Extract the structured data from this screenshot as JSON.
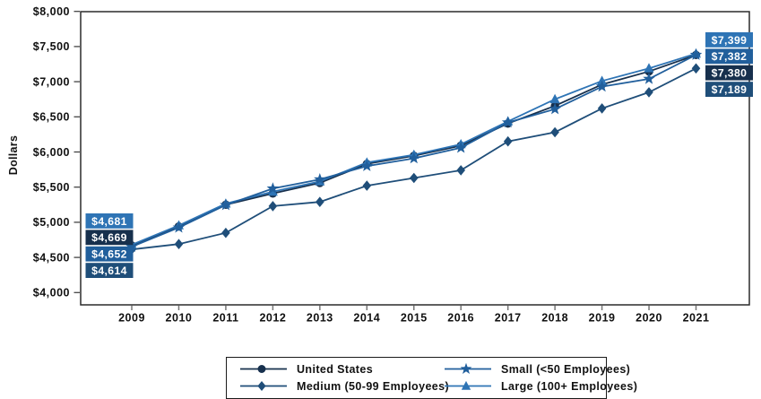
{
  "chart_data": {
    "type": "line",
    "title": "",
    "ylabel": "Dollars",
    "xlabel": "",
    "grid": false,
    "ylim": [
      4000,
      8000
    ],
    "y_tick_interval": 500,
    "y_ticks": [
      "$4,000",
      "$4,500",
      "$5,000",
      "$5,500",
      "$6,000",
      "$6,500",
      "$7,000",
      "$7,500",
      "$8,000"
    ],
    "years": [
      "2009",
      "2010",
      "2011",
      "2012",
      "2013",
      "2014",
      "2015",
      "2016",
      "2017",
      "2018",
      "2019",
      "2020",
      "2021"
    ],
    "series": [
      {
        "name": "United States",
        "marker": "circle",
        "color": "#17304d",
        "values": [
          4669,
          4940,
          5250,
          5410,
          5560,
          5830,
          5945,
          6090,
          6405,
          6655,
          6960,
          7145,
          7380
        ]
      },
      {
        "name": "Medium (50-99 Employees)",
        "marker": "diamond",
        "color": "#1f4e79",
        "values": [
          4614,
          4690,
          4850,
          5230,
          5290,
          5520,
          5630,
          5740,
          6150,
          6280,
          6620,
          6850,
          7189
        ]
      },
      {
        "name": "Large (100+ Employees)",
        "marker": "triangle",
        "color": "#2e74b5",
        "values": [
          4681,
          4955,
          5265,
          5435,
          5580,
          5850,
          5960,
          6110,
          6435,
          6750,
          7010,
          7190,
          7399
        ]
      },
      {
        "name": "Small (<50 Employees)",
        "marker": "star",
        "color": "#215f9c",
        "values": [
          4652,
          4925,
          5245,
          5480,
          5610,
          5800,
          5910,
          6060,
          6420,
          6610,
          6930,
          7040,
          7382
        ]
      }
    ],
    "point_labels": {
      "left_year": "2009",
      "left": [
        {
          "text": "$4,681",
          "series": "Large (100+ Employees)",
          "color": "#2e74b5"
        },
        {
          "text": "$4,669",
          "series": "United States",
          "color": "#17304d"
        },
        {
          "text": "$4,652",
          "series": "Small (<50 Employees)",
          "color": "#215f9c"
        },
        {
          "text": "$4,614",
          "series": "Medium (50-99 Employees)",
          "color": "#1f4e79"
        }
      ],
      "right_year": "2021",
      "right": [
        {
          "text": "$7,399",
          "series": "Large (100+ Employees)",
          "color": "#2e74b5"
        },
        {
          "text": "$7,382",
          "series": "Small (<50 Employees)",
          "color": "#215f9c"
        },
        {
          "text": "$7,380",
          "series": "United States",
          "color": "#17304d"
        },
        {
          "text": "$7,189",
          "series": "Medium (50-99 Employees)",
          "color": "#1f4e79"
        }
      ]
    },
    "legend": {
      "position": "bottom",
      "order": [
        "United States",
        "Small (<50 Employees)",
        "Medium (50-99 Employees)",
        "Large (100+ Employees)"
      ]
    }
  }
}
